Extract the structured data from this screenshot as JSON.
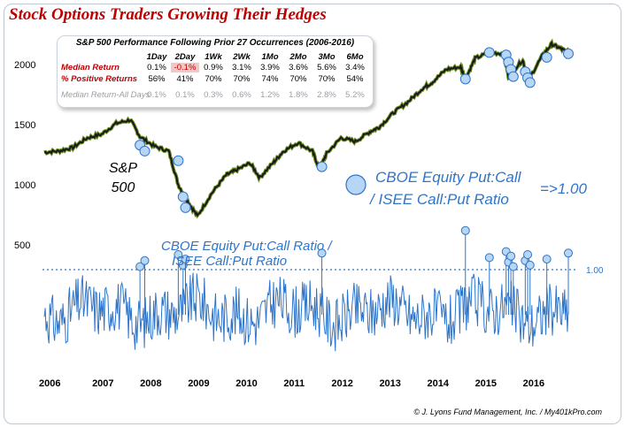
{
  "title": "Stock Options Traders Growing Their Hedges",
  "stats_table": {
    "title": "S&P 500 Performance Following Prior 27 Occurrences (2006-2016)",
    "columns": [
      "1Day",
      "2Day",
      "1Wk",
      "2Wk",
      "1Mo",
      "2Mo",
      "3Mo",
      "6Mo"
    ],
    "rows": [
      {
        "label": "Median Return",
        "values": [
          "0.1%",
          "-0.1%",
          "0.9%",
          "3.1%",
          "3.9%",
          "3.6%",
          "5.6%",
          "3.4%"
        ]
      },
      {
        "label": "% Positive Returns",
        "values": [
          "56%",
          "41%",
          "70%",
          "70%",
          "74%",
          "70%",
          "70%",
          "54%"
        ]
      },
      {
        "label": "Median Return-All Days",
        "values": [
          "0.1%",
          "0.1%",
          "0.3%",
          "0.6%",
          "1.2%",
          "1.8%",
          "2.8%",
          "5.2%"
        ]
      }
    ]
  },
  "sp_label": {
    "line1": "S&P",
    "line2": "500"
  },
  "legend": {
    "line1": "CBOE Equity Put:Call",
    "line2": "/ ISEE Call:Put Ratio",
    "threshold": "=>1.00"
  },
  "ratio_label": {
    "line1": "CBOE Equity Put:Call Ratio /",
    "line2": "ISEE Call:Put Ratio"
  },
  "threshold_label": "1.00",
  "credit": "© J. Lyons Fund Management, Inc. / My401kPro.com",
  "colors": {
    "title": "#c00000",
    "price": "#1a1a1a",
    "price_edge": "#6b8e23",
    "ratio": "#2e75c9",
    "marker": "#9dc3f0"
  },
  "chart_data": [
    {
      "type": "line",
      "name": "S&P 500",
      "ylabel": "",
      "yticks": [
        500,
        1000,
        1500,
        2000
      ],
      "xticks": [
        "2006",
        "2007",
        "2008",
        "2009",
        "2010",
        "2011",
        "2012",
        "2013",
        "2014",
        "2015",
        "2016"
      ],
      "x": [
        2006.0,
        2006.3,
        2006.6,
        2006.9,
        2007.2,
        2007.5,
        2007.8,
        2008.0,
        2008.3,
        2008.6,
        2008.8,
        2009.0,
        2009.2,
        2009.5,
        2009.8,
        2010.0,
        2010.3,
        2010.5,
        2010.8,
        2011.0,
        2011.3,
        2011.6,
        2011.75,
        2011.9,
        2012.2,
        2012.5,
        2012.8,
        2013.0,
        2013.3,
        2013.6,
        2013.9,
        2014.1,
        2014.4,
        2014.7,
        2014.8,
        2015.0,
        2015.3,
        2015.6,
        2015.7,
        2016.0,
        2016.1,
        2016.4,
        2016.6,
        2016.8,
        2016.95
      ],
      "values": [
        1270,
        1280,
        1310,
        1390,
        1420,
        1510,
        1540,
        1400,
        1320,
        1280,
        1000,
        860,
        740,
        930,
        1080,
        1120,
        1180,
        1060,
        1190,
        1280,
        1350,
        1280,
        1130,
        1260,
        1390,
        1360,
        1440,
        1480,
        1600,
        1690,
        1800,
        1850,
        1960,
        1980,
        1880,
        2050,
        2100,
        2090,
        1900,
        2040,
        1860,
        2070,
        2170,
        2130,
        2100
      ],
      "markers_x": [
        2008.0,
        2008.1,
        2008.8,
        2008.9,
        2008.95,
        2011.8,
        2014.8,
        2015.3,
        2015.65,
        2015.7,
        2015.75,
        2015.8,
        2016.05,
        2016.1,
        2016.15,
        2016.5,
        2016.95
      ],
      "markers_y": [
        1330,
        1280,
        1200,
        900,
        810,
        1150,
        1880,
        2100,
        2080,
        2020,
        1960,
        1900,
        1940,
        1890,
        1850,
        2060,
        2090
      ]
    },
    {
      "type": "line",
      "name": "CBOE Equity Put:Call Ratio / ISEE Call:Put Ratio",
      "ylabel": "",
      "threshold": 1.0,
      "x_range": [
        2006.0,
        2016.95
      ],
      "min": 0.5,
      "max": 1.3
    }
  ]
}
